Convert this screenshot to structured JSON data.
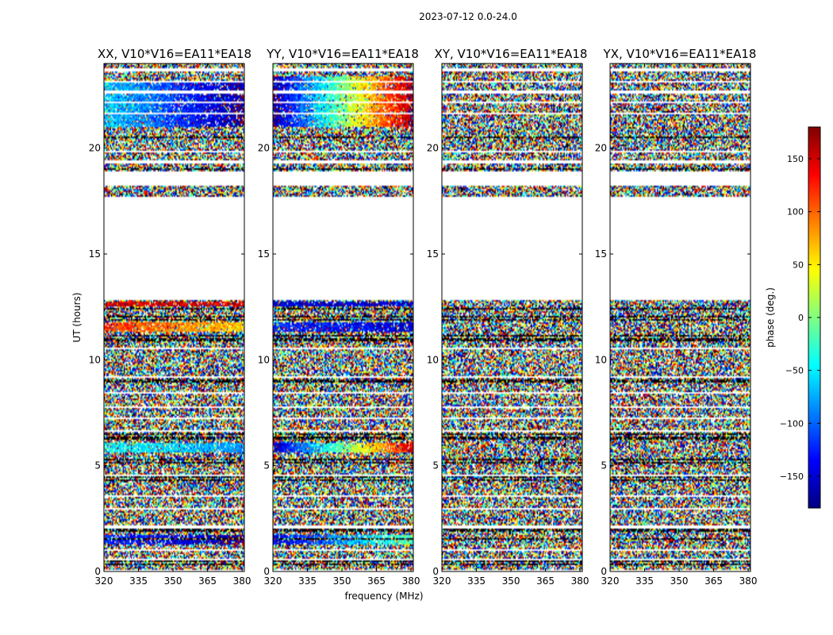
{
  "figure": {
    "suptitle": "2023-07-12 0.0-24.0"
  },
  "chart_data": [
    {
      "type": "heatmap",
      "title": "XX, V10*V16=EA11*EA18",
      "xlabel": "",
      "ylabel": "UT (hours)",
      "xlim": [
        320,
        381
      ],
      "ylim": [
        0,
        24
      ],
      "xticks": [
        "320",
        "335",
        "350",
        "365",
        "380"
      ],
      "yticks": [
        "0",
        "5",
        "10",
        "15",
        "20"
      ],
      "coherent_bands": [
        {
          "y": [
            1.25,
            1.75
          ],
          "phase_start": -120,
          "phase_end": -170,
          "note": "smooth gradient across band"
        },
        {
          "y": [
            5.6,
            6.1
          ],
          "phase_start": -40,
          "phase_end": -80
        },
        {
          "y": [
            11.3,
            11.8
          ],
          "phase_start": 120,
          "phase_end": 60
        },
        {
          "y": [
            12.55,
            12.75
          ],
          "phase_start": 150,
          "phase_end": 150
        },
        {
          "y": [
            21.0,
            23.2
          ],
          "phase_start": -60,
          "phase_end": -170
        }
      ]
    },
    {
      "type": "heatmap",
      "title": "YY, V10*V16=EA11*EA18",
      "xlabel": "frequency (MHz)",
      "ylabel": "",
      "xlim": [
        320,
        381
      ],
      "ylim": [
        0,
        24
      ],
      "xticks": [
        "320",
        "335",
        "350",
        "365",
        "380"
      ],
      "yticks": [
        "0",
        "5",
        "10",
        "15",
        "20"
      ],
      "coherent_bands": [
        {
          "y": [
            1.25,
            1.75
          ],
          "phase_start": -150,
          "phase_end": -10
        },
        {
          "y": [
            5.6,
            6.1
          ],
          "phase_start": -160,
          "phase_end": 150
        },
        {
          "y": [
            11.3,
            11.8
          ],
          "phase_start": -120,
          "phase_end": -150
        },
        {
          "y": [
            12.55,
            12.75
          ],
          "phase_start": -150,
          "phase_end": -150
        },
        {
          "y": [
            21.0,
            23.4
          ],
          "phase_start": -170,
          "phase_end": 170
        }
      ]
    },
    {
      "type": "heatmap",
      "title": "XY, V10*V16=EA11*EA18",
      "xlabel": "",
      "ylabel": "",
      "xlim": [
        320,
        381
      ],
      "ylim": [
        0,
        24
      ],
      "xticks": [
        "320",
        "335",
        "350",
        "365",
        "380"
      ],
      "yticks": [
        "0",
        "5",
        "10",
        "15",
        "20"
      ],
      "coherent_bands": []
    },
    {
      "type": "heatmap",
      "title": "YX, V10*V16=EA11*EA18",
      "xlabel": "",
      "ylabel": "",
      "xlim": [
        320,
        381
      ],
      "ylim": [
        0,
        24
      ],
      "xticks": [
        "320",
        "335",
        "350",
        "365",
        "380"
      ],
      "yticks": [
        "0",
        "5",
        "10",
        "15",
        "20"
      ],
      "coherent_bands": []
    }
  ],
  "colorbar": {
    "label": "phase (deg.)",
    "range": [
      -180,
      180
    ],
    "ticks": [
      "150",
      "100",
      "50",
      "0",
      "−50",
      "−100",
      "−150"
    ],
    "tick_values": [
      150,
      100,
      50,
      0,
      -50,
      -100,
      -150
    ],
    "colormap": "jet"
  },
  "flagged_ranges_hours": [
    [
      12.8,
      17.7
    ],
    [
      18.2,
      18.9
    ],
    [
      0.0,
      0.05
    ]
  ],
  "blank_rows_hours": [
    0.55,
    1.0,
    2.1,
    2.95,
    3.55,
    4.55,
    6.65,
    7.25,
    7.75,
    8.45,
    9.2,
    10.55,
    19.35,
    19.85,
    21.65,
    22.15,
    22.65,
    23.15,
    23.7
  ],
  "black_rows_hours": [
    0.35,
    0.48,
    1.55,
    1.9,
    2.0,
    3.3,
    4.3,
    4.45,
    5.15,
    5.3,
    6.25,
    6.35,
    6.5,
    8.85,
    8.95,
    9.05,
    9.6,
    9.75,
    10.9,
    11.0,
    11.15,
    11.9,
    12.05,
    12.4,
    12.6,
    19.0,
    20.5,
    21.0,
    23.4
  ]
}
